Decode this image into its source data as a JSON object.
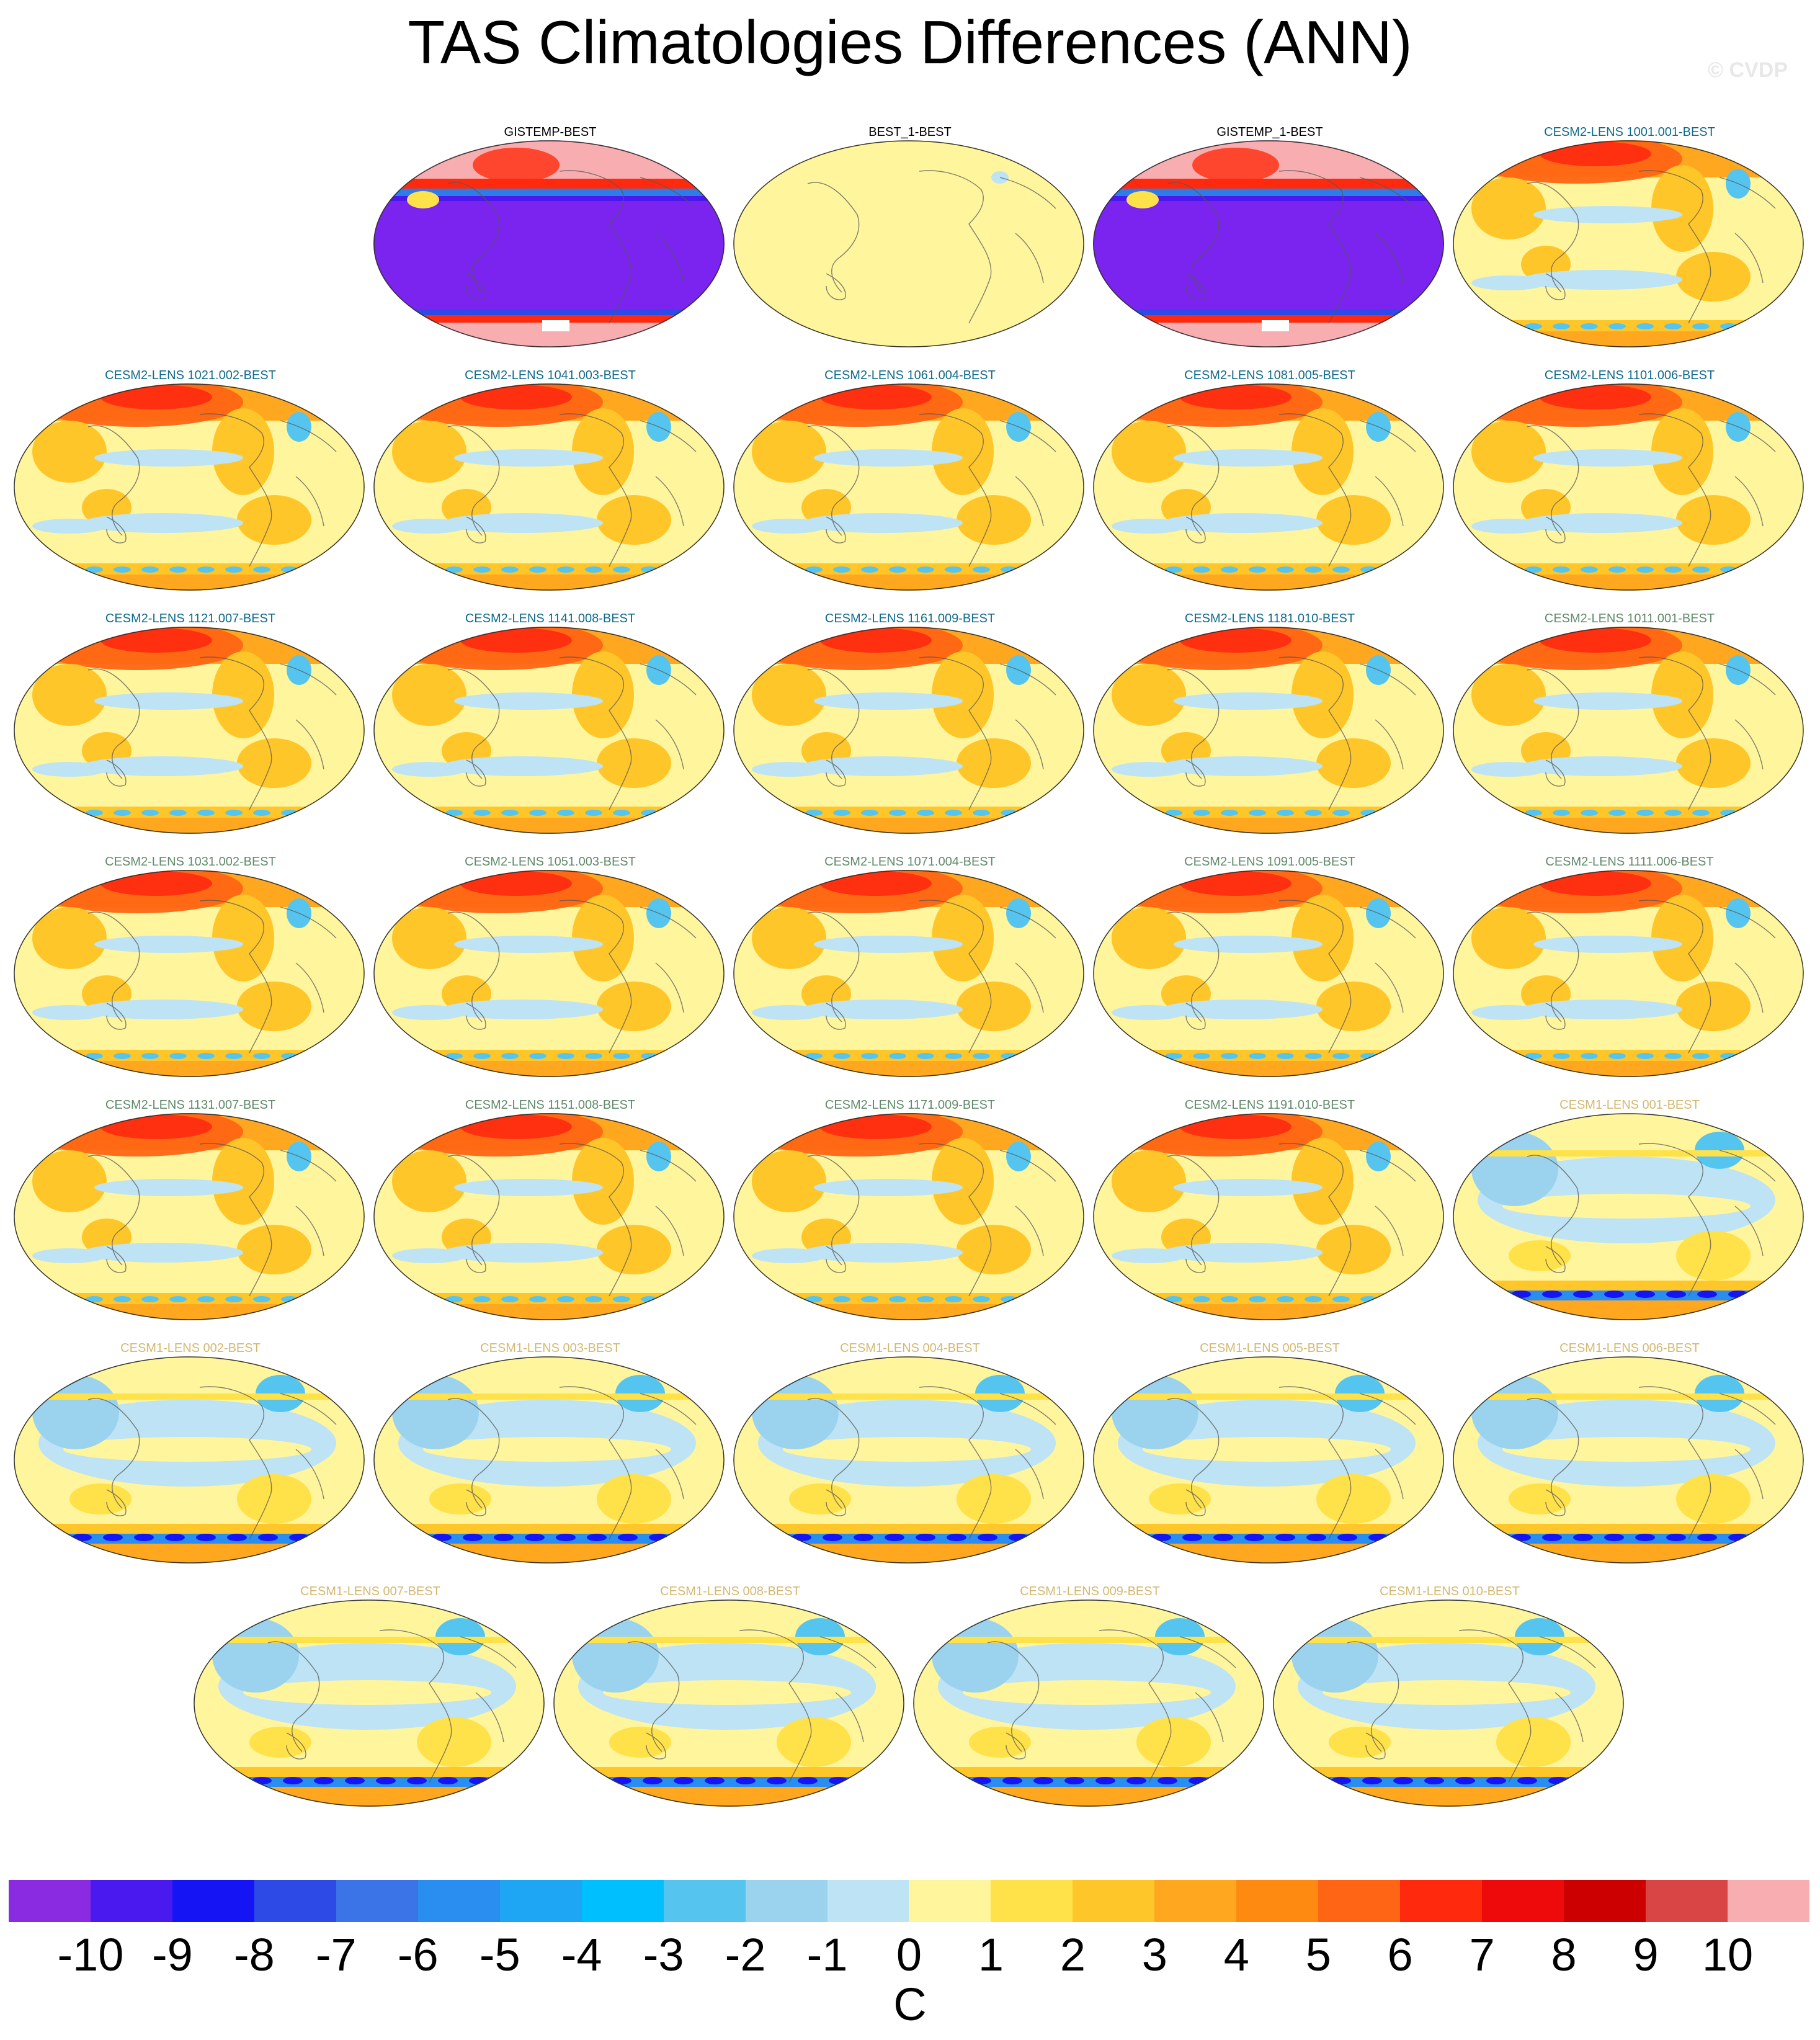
{
  "title": "TAS Climatologies Differences (ANN)",
  "watermark": "© CVDP",
  "colorbar": {
    "colors": [
      "#8a2be2",
      "#4a19f0",
      "#1414f5",
      "#2e4ae6",
      "#3a74e6",
      "#2a8ef0",
      "#1ea6f5",
      "#00bfff",
      "#55c5f0",
      "#9bd3ee",
      "#bde3f5",
      "#fff59d",
      "#ffe14a",
      "#ffc629",
      "#ffa81f",
      "#ff8a12",
      "#ff6514",
      "#ff2a0e",
      "#ee0a0a",
      "#cc0000",
      "#d94444",
      "#f8aeb0"
    ],
    "labels": [
      "-10",
      "-9",
      "-8",
      "-7",
      "-6",
      "-5",
      "-4",
      "-3",
      "-2",
      "-1",
      "0",
      "1",
      "2",
      "3",
      "4",
      "5",
      "6",
      "7",
      "8",
      "9",
      "10"
    ],
    "units": "C"
  },
  "panels": [
    {
      "title": "GISTEMP-BEST",
      "color": "#000000",
      "style": "obs"
    },
    {
      "title": "BEST_1-BEST",
      "color": "#000000",
      "style": "zero"
    },
    {
      "title": "GISTEMP_1-BEST",
      "color": "#000000",
      "style": "obs"
    },
    {
      "title": "CESM2-LENS 1001.001-BEST",
      "color": "#0f6a8c",
      "style": "cesm2"
    },
    {
      "title": "CESM2-LENS 1021.002-BEST",
      "color": "#0f6a8c",
      "style": "cesm2"
    },
    {
      "title": "CESM2-LENS 1041.003-BEST",
      "color": "#0f6a8c",
      "style": "cesm2"
    },
    {
      "title": "CESM2-LENS 1061.004-BEST",
      "color": "#0f6a8c",
      "style": "cesm2"
    },
    {
      "title": "CESM2-LENS 1081.005-BEST",
      "color": "#0f6a8c",
      "style": "cesm2"
    },
    {
      "title": "CESM2-LENS 1101.006-BEST",
      "color": "#0f6a8c",
      "style": "cesm2"
    },
    {
      "title": "CESM2-LENS 1121.007-BEST",
      "color": "#0f6a8c",
      "style": "cesm2"
    },
    {
      "title": "CESM2-LENS 1141.008-BEST",
      "color": "#0f6a8c",
      "style": "cesm2"
    },
    {
      "title": "CESM2-LENS 1161.009-BEST",
      "color": "#0f6a8c",
      "style": "cesm2"
    },
    {
      "title": "CESM2-LENS 1181.010-BEST",
      "color": "#0f6a8c",
      "style": "cesm2"
    },
    {
      "title": "CESM2-LENS 1011.001-BEST",
      "color": "#5f8a6a",
      "style": "cesm2"
    },
    {
      "title": "CESM2-LENS 1031.002-BEST",
      "color": "#5f8a6a",
      "style": "cesm2"
    },
    {
      "title": "CESM2-LENS 1051.003-BEST",
      "color": "#5f8a6a",
      "style": "cesm2"
    },
    {
      "title": "CESM2-LENS 1071.004-BEST",
      "color": "#5f8a6a",
      "style": "cesm2"
    },
    {
      "title": "CESM2-LENS 1091.005-BEST",
      "color": "#5f8a6a",
      "style": "cesm2"
    },
    {
      "title": "CESM2-LENS 1111.006-BEST",
      "color": "#5f8a6a",
      "style": "cesm2"
    },
    {
      "title": "CESM2-LENS 1131.007-BEST",
      "color": "#5f8a6a",
      "style": "cesm2"
    },
    {
      "title": "CESM2-LENS 1151.008-BEST",
      "color": "#5f8a6a",
      "style": "cesm2"
    },
    {
      "title": "CESM2-LENS 1171.009-BEST",
      "color": "#5f8a6a",
      "style": "cesm2"
    },
    {
      "title": "CESM2-LENS 1191.010-BEST",
      "color": "#5f8a6a",
      "style": "cesm2"
    },
    {
      "title": "CESM1-LENS 001-BEST",
      "color": "#d4b870",
      "style": "cesm1"
    },
    {
      "title": "CESM1-LENS 002-BEST",
      "color": "#d4b870",
      "style": "cesm1"
    },
    {
      "title": "CESM1-LENS 003-BEST",
      "color": "#d4b870",
      "style": "cesm1"
    },
    {
      "title": "CESM1-LENS 004-BEST",
      "color": "#d4b870",
      "style": "cesm1"
    },
    {
      "title": "CESM1-LENS 005-BEST",
      "color": "#d4b870",
      "style": "cesm1"
    },
    {
      "title": "CESM1-LENS 006-BEST",
      "color": "#d4b870",
      "style": "cesm1"
    },
    {
      "title": "CESM1-LENS 007-BEST",
      "color": "#d4b870",
      "style": "cesm1"
    },
    {
      "title": "CESM1-LENS 008-BEST",
      "color": "#d4b870",
      "style": "cesm1"
    },
    {
      "title": "CESM1-LENS 009-BEST",
      "color": "#d4b870",
      "style": "cesm1"
    },
    {
      "title": "CESM1-LENS 010-BEST",
      "color": "#d4b870",
      "style": "cesm1"
    }
  ]
}
